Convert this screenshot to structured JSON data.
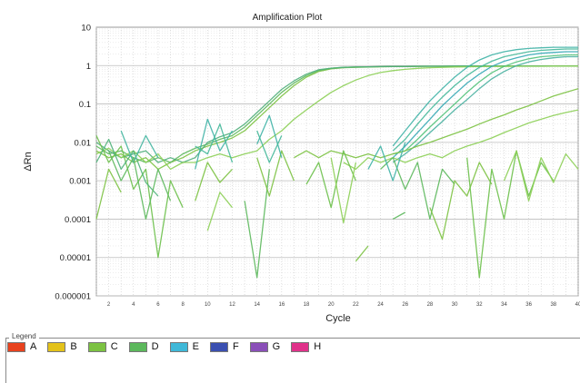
{
  "chart_data": {
    "type": "line",
    "title": "Amplification Plot",
    "xlabel": "Cycle",
    "ylabel": "ΔRn",
    "x_range": [
      1,
      40
    ],
    "y_range": [
      1e-06,
      10
    ],
    "y_scale": "log",
    "y_ticks": [
      "10",
      "1",
      "0.1",
      "0.01",
      "0.001",
      "0.0001",
      "0.00001",
      "0.000001"
    ],
    "x_ticks": [
      "2",
      "4",
      "6",
      "8",
      "10",
      "12",
      "14",
      "16",
      "18",
      "20",
      "22",
      "24",
      "26",
      "28",
      "30",
      "32",
      "34",
      "36",
      "38",
      "40"
    ],
    "grid": true,
    "series": [
      {
        "color": "#7cc242",
        "x": [
          1,
          2,
          3,
          4,
          5,
          6,
          7,
          8,
          9,
          10,
          11,
          12,
          13,
          14,
          15,
          16,
          17,
          18,
          19,
          20,
          21,
          22,
          23,
          24,
          25,
          26,
          27,
          28,
          29,
          30,
          31,
          32,
          33,
          34,
          35,
          36,
          37,
          38,
          39,
          40
        ],
        "y": [
          0.006,
          0.004,
          0.005,
          0.003,
          0.004,
          0.002,
          0.003,
          0.004,
          0.006,
          0.008,
          0.01,
          0.013,
          0.02,
          0.04,
          0.08,
          0.16,
          0.3,
          0.5,
          0.7,
          0.82,
          0.88,
          0.9,
          0.92,
          0.93,
          0.94,
          0.95,
          0.95,
          0.96,
          0.96,
          0.96,
          0.96,
          0.97,
          0.97,
          0.97,
          0.97,
          0.97,
          0.97,
          0.97,
          0.97,
          0.97
        ]
      },
      {
        "color": "#5cb85c",
        "x": [
          1,
          2,
          3,
          4,
          5,
          6,
          7,
          8,
          9,
          10,
          11,
          12,
          13,
          14,
          15,
          16,
          17,
          18,
          19,
          20,
          21,
          22,
          23,
          24,
          25,
          26,
          27,
          28,
          29,
          30,
          31,
          32,
          33,
          34,
          35,
          36,
          37,
          38,
          39,
          40
        ],
        "y": [
          0.008,
          0.005,
          0.006,
          0.004,
          0.003,
          0.004,
          0.003,
          0.005,
          0.007,
          0.009,
          0.012,
          0.015,
          0.025,
          0.05,
          0.1,
          0.2,
          0.35,
          0.55,
          0.75,
          0.85,
          0.9,
          0.92,
          0.93,
          0.94,
          0.95,
          0.95,
          0.96,
          0.96,
          0.96,
          0.97,
          0.97,
          0.97,
          0.97,
          0.97,
          0.97,
          0.97,
          0.97,
          0.97,
          0.97,
          0.97
        ]
      },
      {
        "color": "#4fae7a",
        "x": [
          1,
          2,
          3,
          4,
          5,
          6,
          7,
          8,
          9,
          10,
          11,
          12,
          13,
          14,
          15,
          16,
          17,
          18,
          19,
          20,
          21,
          22,
          23,
          24,
          25,
          26,
          27,
          28,
          29,
          30,
          31,
          32,
          33,
          34,
          35,
          36,
          37,
          38,
          39,
          40
        ],
        "y": [
          0.01,
          0.006,
          0.004,
          0.005,
          0.006,
          0.003,
          0.004,
          0.003,
          0.004,
          0.01,
          0.014,
          0.018,
          0.03,
          0.06,
          0.12,
          0.24,
          0.4,
          0.6,
          0.78,
          0.86,
          0.9,
          0.92,
          0.93,
          0.94,
          0.95,
          0.95,
          0.96,
          0.96,
          0.96,
          0.97,
          0.97,
          0.97,
          0.97,
          0.97,
          0.97,
          0.97,
          0.97,
          0.97,
          0.97,
          0.97
        ]
      },
      {
        "color": "#8ccf55",
        "x": [
          1,
          2,
          3,
          4,
          5,
          6,
          7,
          8,
          9,
          10,
          11,
          12,
          13,
          14,
          15,
          16,
          17,
          18,
          19,
          20,
          21,
          22,
          23,
          24,
          25,
          26,
          27,
          28,
          29,
          30,
          31,
          32,
          33,
          34,
          35,
          36,
          37,
          38,
          39,
          40
        ],
        "y": [
          0.005,
          0.007,
          0.004,
          0.006,
          0.003,
          0.005,
          0.002,
          0.003,
          0.003,
          0.004,
          0.005,
          0.004,
          0.005,
          0.006,
          0.012,
          0.02,
          0.04,
          0.07,
          0.12,
          0.2,
          0.3,
          0.42,
          0.55,
          0.66,
          0.74,
          0.8,
          0.85,
          0.88,
          0.9,
          0.92,
          0.93,
          0.94,
          0.95,
          0.95,
          0.96,
          0.96,
          0.96,
          0.97,
          0.97,
          0.97
        ]
      },
      {
        "color": "#3fb3a6",
        "x": [
          25,
          26,
          27,
          28,
          29,
          30,
          31,
          32,
          33,
          34,
          35,
          36,
          37,
          38,
          39,
          40
        ],
        "y": [
          0.008,
          0.02,
          0.05,
          0.12,
          0.25,
          0.5,
          0.9,
          1.4,
          1.9,
          2.3,
          2.6,
          2.8,
          2.9,
          3.0,
          3.0,
          3.0
        ]
      },
      {
        "color": "#45b89a",
        "x": [
          25,
          26,
          27,
          28,
          29,
          30,
          31,
          32,
          33,
          34,
          35,
          36,
          37,
          38,
          39,
          40
        ],
        "y": [
          0.006,
          0.012,
          0.03,
          0.07,
          0.15,
          0.3,
          0.55,
          0.9,
          1.3,
          1.7,
          2.0,
          2.3,
          2.5,
          2.6,
          2.7,
          2.7
        ]
      },
      {
        "color": "#35a8b5",
        "x": [
          25,
          26,
          27,
          28,
          29,
          30,
          31,
          32,
          33,
          34,
          35,
          36,
          37,
          38,
          39,
          40
        ],
        "y": [
          0.004,
          0.008,
          0.018,
          0.04,
          0.09,
          0.18,
          0.35,
          0.6,
          0.95,
          1.3,
          1.6,
          1.9,
          2.1,
          2.2,
          2.3,
          2.3
        ]
      },
      {
        "color": "#52c27a",
        "x": [
          25,
          26,
          27,
          28,
          29,
          30,
          31,
          32,
          33,
          34,
          35,
          36,
          37,
          38,
          39,
          40
        ],
        "y": [
          0.005,
          0.006,
          0.012,
          0.025,
          0.05,
          0.1,
          0.2,
          0.38,
          0.65,
          0.95,
          1.25,
          1.5,
          1.7,
          1.8,
          1.9,
          1.9
        ]
      },
      {
        "color": "#48b0a0",
        "x": [
          25,
          26,
          27,
          28,
          29,
          30,
          31,
          32,
          33,
          34,
          35,
          36,
          37,
          38,
          39,
          40
        ],
        "y": [
          0.003,
          0.005,
          0.009,
          0.018,
          0.035,
          0.07,
          0.13,
          0.25,
          0.45,
          0.7,
          1.0,
          1.25,
          1.45,
          1.6,
          1.7,
          1.7
        ]
      },
      {
        "color": "#7cc242",
        "x": [
          17,
          18,
          19,
          20,
          21,
          22,
          23,
          24,
          25,
          26,
          27,
          28,
          29,
          30,
          31,
          32,
          33,
          34,
          35,
          36,
          37,
          38,
          39,
          40
        ],
        "y": [
          0.004,
          0.006,
          0.004,
          0.006,
          0.005,
          0.004,
          0.005,
          0.004,
          0.005,
          0.006,
          0.008,
          0.01,
          0.013,
          0.017,
          0.022,
          0.03,
          0.04,
          0.052,
          0.07,
          0.09,
          0.12,
          0.16,
          0.2,
          0.25
        ]
      },
      {
        "color": "#8ccf55",
        "x": [
          21,
          22,
          23,
          24,
          25,
          26,
          27,
          28,
          29,
          30,
          31,
          32,
          33,
          34,
          35,
          36,
          37,
          38,
          39,
          40
        ],
        "y": [
          0.003,
          0.002,
          0.004,
          0.003,
          0.004,
          0.003,
          0.004,
          0.005,
          0.004,
          0.006,
          0.008,
          0.01,
          0.013,
          0.018,
          0.024,
          0.032,
          0.04,
          0.05,
          0.06,
          0.07
        ]
      },
      {
        "color": "#6cc04a",
        "x": [
          1,
          2,
          3,
          4,
          5,
          6,
          7,
          8
        ],
        "y": [
          0.015,
          0.003,
          0.008,
          0.0006,
          0.002,
          1e-05,
          0.001,
          0.0002
        ]
      },
      {
        "color": "#4fb37a",
        "x": [
          1,
          2,
          3,
          4,
          5,
          6
        ],
        "y": [
          0.003,
          0.012,
          0.002,
          0.006,
          0.0009,
          0.0004
        ]
      },
      {
        "color": "#44b5a0",
        "x": [
          3,
          4,
          5,
          6
        ],
        "y": [
          0.02,
          0.003,
          0.015,
          0.004
        ]
      },
      {
        "color": "#7cc242",
        "x": [
          1,
          2,
          3
        ],
        "y": [
          0.0001,
          0.002,
          0.0005
        ]
      },
      {
        "color": "#5cb85c",
        "x": [
          2,
          3,
          4,
          5,
          6,
          7
        ],
        "y": [
          0.006,
          0.001,
          0.004,
          0.0001,
          0.002,
          0.0003
        ]
      },
      {
        "color": "#3fb3a6",
        "x": [
          9,
          10,
          11,
          12
        ],
        "y": [
          0.002,
          0.04,
          0.006,
          0.02
        ]
      },
      {
        "color": "#45b89a",
        "x": [
          9,
          10,
          11,
          12
        ],
        "y": [
          0.008,
          0.005,
          0.03,
          0.003
        ]
      },
      {
        "color": "#7cc242",
        "x": [
          9,
          10,
          11,
          12
        ],
        "y": [
          0.0003,
          0.003,
          0.0009,
          0.002
        ]
      },
      {
        "color": "#8ccf55",
        "x": [
          10,
          11,
          12
        ],
        "y": [
          5e-05,
          0.0005,
          0.0002
        ]
      },
      {
        "color": "#5cb85c",
        "x": [
          13,
          14,
          15
        ],
        "y": [
          0.0003,
          3e-06,
          0.002
        ]
      },
      {
        "color": "#7cc242",
        "x": [
          14,
          15,
          16,
          17
        ],
        "y": [
          0.004,
          0.0004,
          0.006,
          0.001
        ]
      },
      {
        "color": "#3fb3a6",
        "x": [
          14,
          15,
          16
        ],
        "y": [
          0.009,
          0.05,
          0.004
        ]
      },
      {
        "color": "#45b89a",
        "x": [
          14,
          15,
          16
        ],
        "y": [
          0.02,
          0.003,
          0.015
        ]
      },
      {
        "color": "#6cc04a",
        "x": [
          18,
          19,
          20,
          21,
          22
        ],
        "y": [
          0.0008,
          0.003,
          0.0002,
          0.006,
          0.001
        ]
      },
      {
        "color": "#8ccf55",
        "x": [
          20,
          21,
          22
        ],
        "y": [
          0.004,
          8e-05,
          0.003
        ]
      },
      {
        "color": "#5cb85c",
        "x": [
          24,
          25,
          26,
          27,
          28,
          29,
          30
        ],
        "y": [
          0.002,
          0.004,
          0.0006,
          0.003,
          0.0001,
          0.002,
          0.0008
        ]
      },
      {
        "color": "#7cc242",
        "x": [
          28,
          29,
          30,
          31,
          32,
          33
        ],
        "y": [
          0.0002,
          3e-05,
          0.001,
          0.0004,
          0.003,
          0.0008
        ]
      },
      {
        "color": "#6cc04a",
        "x": [
          31,
          32,
          33,
          34,
          35,
          36,
          37,
          38
        ],
        "y": [
          0.004,
          3e-06,
          0.002,
          0.0001,
          0.006,
          0.0004,
          0.003,
          0.001
        ]
      },
      {
        "color": "#8ccf55",
        "x": [
          34,
          35,
          36,
          37,
          38,
          39,
          40
        ],
        "y": [
          0.001,
          0.006,
          0.0003,
          0.004,
          0.0009,
          0.005,
          0.002
        ]
      },
      {
        "color": "#3fb3a6",
        "x": [
          23,
          24,
          25,
          26
        ],
        "y": [
          0.002,
          0.008,
          0.001,
          0.01
        ]
      },
      {
        "color": "#7cc242",
        "x": [
          22,
          23
        ],
        "y": [
          8e-06,
          2e-05
        ]
      },
      {
        "color": "#5cb85c",
        "x": [
          25,
          26
        ],
        "y": [
          0.0001,
          0.00015
        ]
      }
    ],
    "legend": [
      "A",
      "B",
      "C",
      "D",
      "E",
      "F",
      "G",
      "H"
    ],
    "legend_colors": [
      "#e8421e",
      "#e3c21a",
      "#7cc242",
      "#5cb85c",
      "#3fb8d8",
      "#3a4fb0",
      "#8a4fb8",
      "#e0328a"
    ],
    "legend_placement": "bottom"
  },
  "legend_caption": "Legend"
}
